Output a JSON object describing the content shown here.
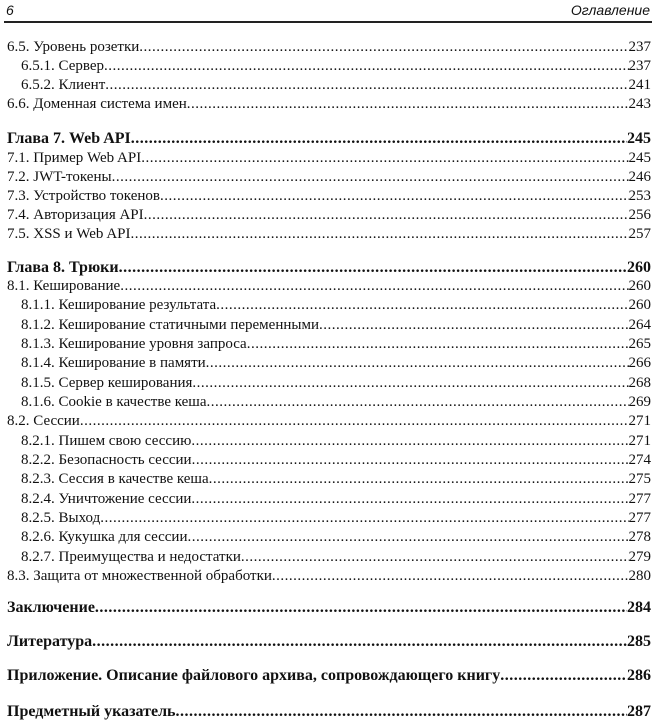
{
  "header": {
    "page_number": "6",
    "title": "Оглавление"
  },
  "entries": [
    {
      "label": "6.5. Уровень розетки",
      "page": "237",
      "level": 1
    },
    {
      "label": "6.5.1. Сервер",
      "page": "237",
      "level": 2
    },
    {
      "label": "6.5.2. Клиент",
      "page": "241",
      "level": 2
    },
    {
      "label": "6.6. Доменная система имен",
      "page": "243",
      "level": 1
    },
    {
      "label": "Глава 7. Web API",
      "page": "245",
      "level": 0
    },
    {
      "label": "7.1. Пример Web API",
      "page": "245",
      "level": 1
    },
    {
      "label": "7.2. JWT-токены",
      "page": "246",
      "level": 1
    },
    {
      "label": "7.3. Устройство токенов",
      "page": "253",
      "level": 1
    },
    {
      "label": "7.4. Авторизация API",
      "page": "256",
      "level": 1
    },
    {
      "label": "7.5. XSS и Web API",
      "page": "257",
      "level": 1
    },
    {
      "label": "Глава 8. Трюки",
      "page": "260",
      "level": 0
    },
    {
      "label": "8.1. Кеширование",
      "page": "260",
      "level": 1
    },
    {
      "label": "8.1.1. Кеширование результата",
      "page": "260",
      "level": 2
    },
    {
      "label": "8.1.2. Кеширование статичными переменными",
      "page": "264",
      "level": 2
    },
    {
      "label": "8.1.3. Кеширование уровня запроса",
      "page": "265",
      "level": 2
    },
    {
      "label": "8.1.4. Кеширование в памяти",
      "page": "266",
      "level": 2
    },
    {
      "label": "8.1.5. Сервер кеширования",
      "page": "268",
      "level": 2
    },
    {
      "label": "8.1.6. Cookie в качестве кеша",
      "page": "269",
      "level": 2
    },
    {
      "label": "8.2. Сессии",
      "page": "271",
      "level": 1
    },
    {
      "label": "8.2.1. Пишем свою сессию",
      "page": "271",
      "level": 2
    },
    {
      "label": "8.2.2. Безопасность сессии",
      "page": "274",
      "level": 2
    },
    {
      "label": "8.2.3. Сессия в качестве кеша",
      "page": "275",
      "level": 2
    },
    {
      "label": "8.2.4. Уничтожение сессии",
      "page": "277",
      "level": 2
    },
    {
      "label": "8.2.5. Выход",
      "page": "277",
      "level": 2
    },
    {
      "label": "8.2.6. Кукушка для сессии",
      "page": "278",
      "level": 2
    },
    {
      "label": "8.2.7. Преимущества и недостатки",
      "page": "279",
      "level": 2
    },
    {
      "label": "8.3. Защита от множественной обработки",
      "page": "280",
      "level": 1
    },
    {
      "label": "Заключение",
      "page": "284",
      "level": 0
    },
    {
      "label": "Литература",
      "page": "285",
      "level": 0
    },
    {
      "label": "Приложение. Описание файлового архива, сопровождающего книгу",
      "page": "286",
      "level": 0
    },
    {
      "label": "Предметный указатель",
      "page": "287",
      "level": 0
    }
  ]
}
